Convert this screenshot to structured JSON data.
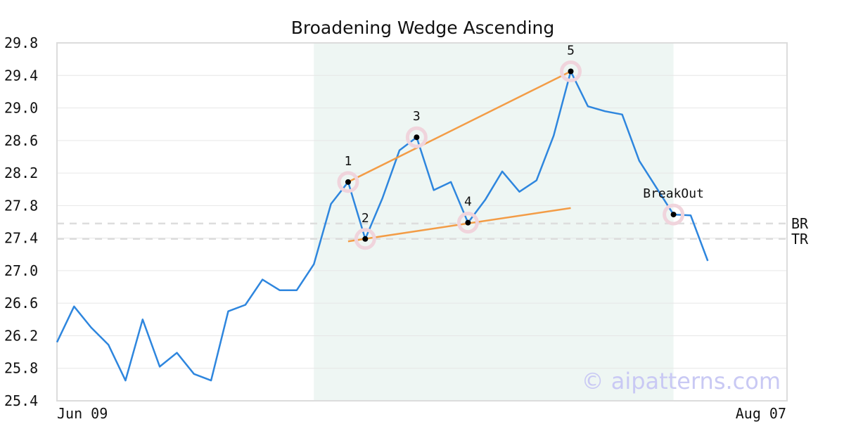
{
  "chart_data": {
    "type": "line",
    "title": "Broadening Wedge Ascending",
    "watermark": "© aipatterns.com",
    "ylim": [
      25.4,
      29.8
    ],
    "yticks": [
      "25.4",
      "25.8",
      "26.2",
      "26.6",
      "27.0",
      "27.4",
      "27.8",
      "28.2",
      "28.6",
      "29.0",
      "29.4",
      "29.8"
    ],
    "x_labels": {
      "start": "Jun 09",
      "end": "Aug 07"
    },
    "grid": true,
    "colors": {
      "line": "#2e86de",
      "trend": "#f39c46",
      "shade": "#eef6f3",
      "marker_halo": "#f0d4dc",
      "ref": "#dddddd"
    },
    "series": [
      {
        "values": [
          26.12,
          26.56,
          26.3,
          26.09,
          25.65,
          26.4,
          25.82,
          25.99,
          25.73,
          25.65,
          26.5,
          26.58,
          26.89,
          26.76,
          26.76,
          27.08,
          27.82,
          28.09,
          27.39,
          27.89,
          28.48,
          28.64,
          27.99,
          28.09,
          27.59,
          27.87,
          28.22,
          27.97,
          28.11,
          28.66,
          29.45,
          29.02,
          28.96,
          28.92,
          28.35,
          28.02,
          27.69,
          27.68,
          27.12
        ]
      }
    ],
    "shaded_range": {
      "x_start": 15,
      "x_end": 36
    },
    "points": [
      {
        "label": "1",
        "x": 17,
        "y": 28.09
      },
      {
        "label": "2",
        "x": 18,
        "y": 27.39
      },
      {
        "label": "3",
        "x": 21,
        "y": 28.64
      },
      {
        "label": "4",
        "x": 24,
        "y": 27.59
      },
      {
        "label": "5",
        "x": 30,
        "y": 29.45
      },
      {
        "label": "BreakOut",
        "x": 36,
        "y": 27.69
      }
    ],
    "trendlines": [
      {
        "x1": 17,
        "y1": 28.09,
        "x2": 30,
        "y2": 29.45
      },
      {
        "x1": 17,
        "y1": 27.36,
        "x2": 30,
        "y2": 27.77
      }
    ],
    "reference_lines": [
      {
        "label": "BR",
        "y": 27.58
      },
      {
        "label": "TR",
        "y": 27.39
      }
    ]
  }
}
